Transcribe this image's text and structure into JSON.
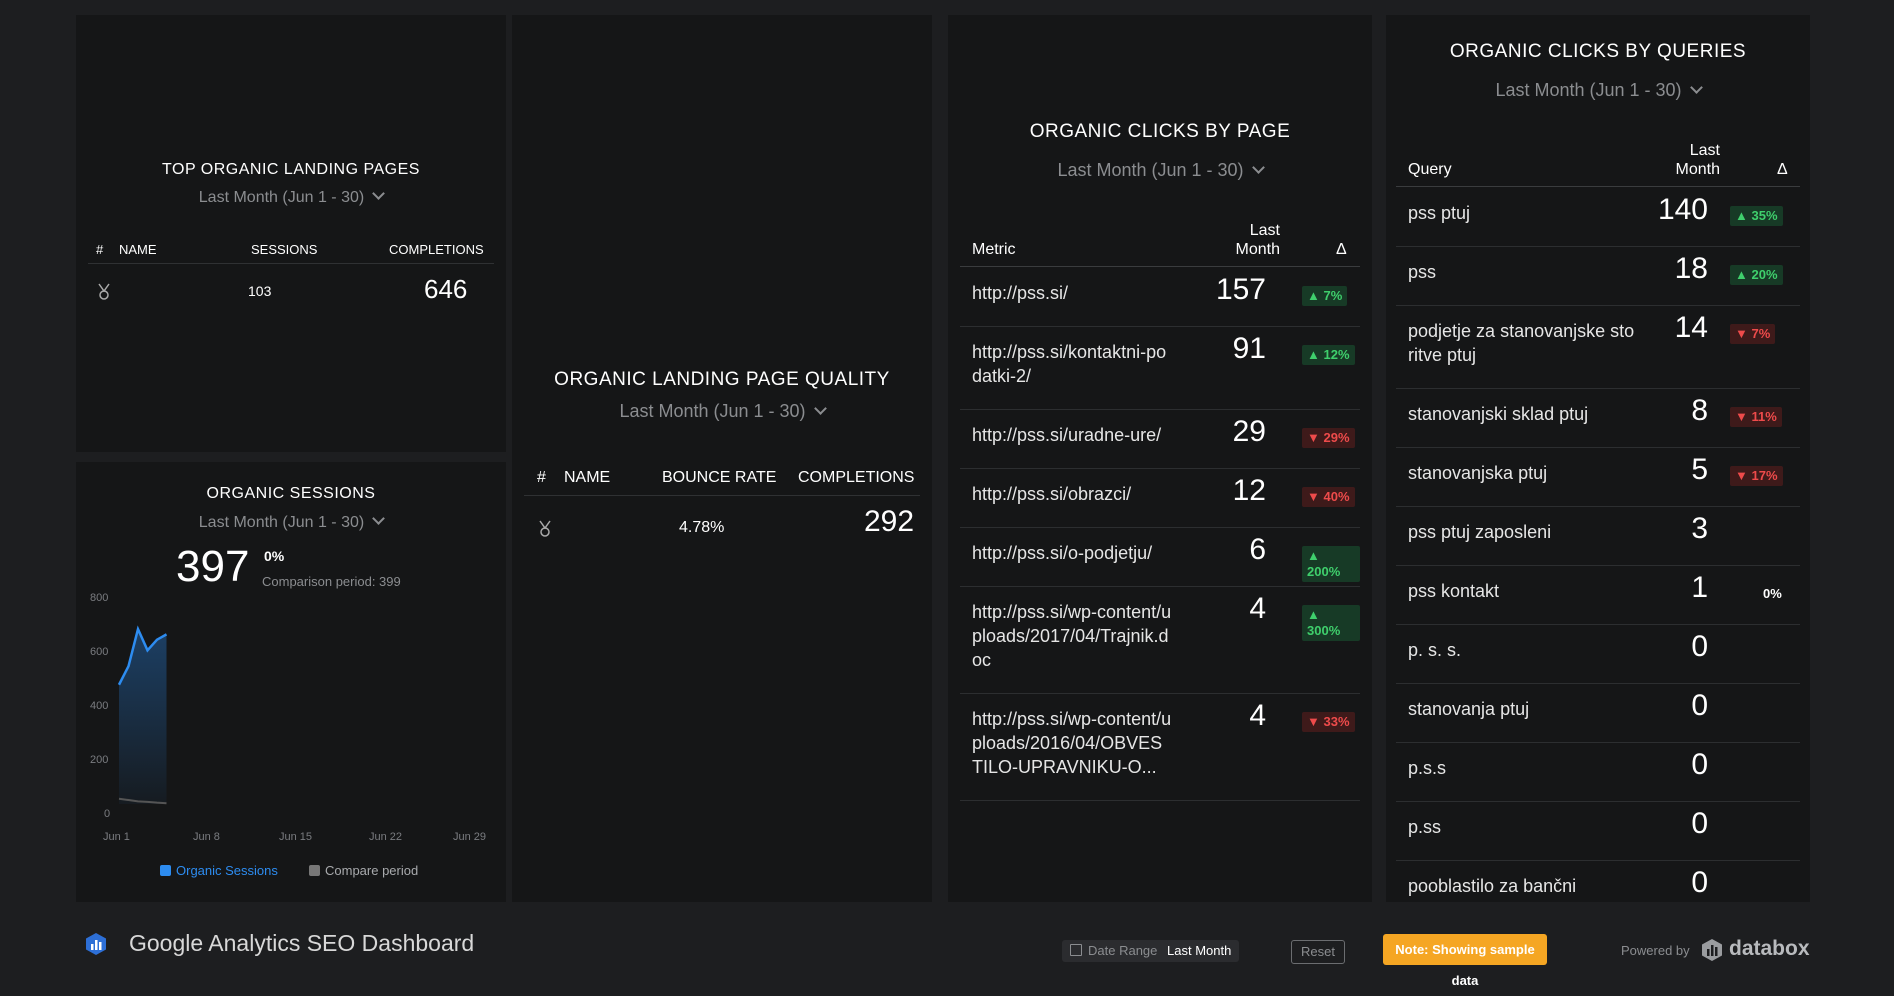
{
  "top_landing": {
    "title": "TOP ORGANIC LANDING PAGES",
    "date": "Last Month (Jun 1 - 30)",
    "headers": [
      "#",
      "NAME",
      "SESSIONS",
      "COMPLETIONS"
    ],
    "row": {
      "sessions": "103",
      "completions": "646"
    }
  },
  "organic_sessions": {
    "title": "ORGANIC SESSIONS",
    "date": "Last Month (Jun 1 - 30)",
    "value": "397",
    "change": "0%",
    "comparison": "Comparison period: 399",
    "legend": [
      "Organic Sessions",
      "Compare period"
    ],
    "colors": {
      "series": "#2d8cf0",
      "compare": "#555"
    }
  },
  "chart_data": {
    "type": "area",
    "x_ticks": [
      "Jun 1",
      "Jun 8",
      "Jun 15",
      "Jun 22",
      "Jun 29"
    ],
    "y_ticks": [
      "800",
      "600",
      "400",
      "200",
      "0"
    ],
    "ylim": [
      0,
      800
    ],
    "series": [
      {
        "name": "Organic Sessions",
        "x": [
          1,
          2,
          3,
          4,
          5,
          6
        ],
        "values": [
          450,
          520,
          660,
          580,
          620,
          640
        ]
      },
      {
        "name": "Compare period",
        "x": [
          1,
          2,
          3,
          4,
          5,
          6
        ],
        "values": [
          20,
          15,
          10,
          8,
          5,
          3
        ]
      }
    ],
    "grid": false,
    "legend": "bottom"
  },
  "landing_quality": {
    "title": "ORGANIC LANDING PAGE QUALITY",
    "date": "Last Month (Jun 1 - 30)",
    "headers": [
      "#",
      "NAME",
      "BOUNCE RATE",
      "COMPLETIONS"
    ],
    "row": {
      "bounce": "4.78%",
      "completions": "292"
    }
  },
  "clicks_by_page": {
    "title": "ORGANIC CLICKS BY PAGE",
    "date": "Last Month (Jun 1 - 30)",
    "headers": {
      "metric": "Metric",
      "last1": "Last",
      "last2": "Month",
      "delta": "Δ"
    },
    "rows": [
      {
        "label": "http://pss.si/",
        "value": "157",
        "change": "▲ 7%",
        "dir": "up"
      },
      {
        "label": "http://pss.si/kontaktni-podatki-2/",
        "value": "91",
        "change": "▲ 12%",
        "dir": "up"
      },
      {
        "label": "http://pss.si/uradne-ure/",
        "value": "29",
        "change": "▼ 29%",
        "dir": "down"
      },
      {
        "label": "http://pss.si/obrazci/",
        "value": "12",
        "change": "▼ 40%",
        "dir": "down"
      },
      {
        "label": "http://pss.si/o-podjetju/",
        "value": "6",
        "change": "▲ 200%",
        "dir": "up"
      },
      {
        "label": "http://pss.si/wp-content/uploads/2017/04/Trajnik.doc",
        "value": "4",
        "change": "▲ 300%",
        "dir": "up"
      },
      {
        "label": "http://pss.si/wp-content/uploads/2016/04/OBVESTILO-UPRAVNIKU-O...",
        "value": "4",
        "change": "▼ 33%",
        "dir": "down"
      }
    ]
  },
  "clicks_by_queries": {
    "title": "ORGANIC CLICKS BY QUERIES",
    "date": "Last Month (Jun 1 - 30)",
    "headers": {
      "query": "Query",
      "last1": "Last",
      "last2": "Month",
      "delta": "Δ"
    },
    "rows": [
      {
        "label": "pss ptuj",
        "value": "140",
        "change": "▲ 35%",
        "dir": "up"
      },
      {
        "label": "pss",
        "value": "18",
        "change": "▲ 20%",
        "dir": "up"
      },
      {
        "label": "podjetje za stanovanjske storitve ptuj",
        "value": "14",
        "change": "▼ 7%",
        "dir": "down"
      },
      {
        "label": "stanovanjski sklad ptuj",
        "value": "8",
        "change": "▼ 11%",
        "dir": "down"
      },
      {
        "label": "stanovanjska ptuj",
        "value": "5",
        "change": "▼ 17%",
        "dir": "down"
      },
      {
        "label": "pss ptuj zaposleni",
        "value": "3",
        "change": "",
        "dir": "none"
      },
      {
        "label": "pss kontakt",
        "value": "1",
        "change": "0%",
        "dir": "neutral"
      },
      {
        "label": "p. s. s.",
        "value": "0",
        "change": "",
        "dir": "none"
      },
      {
        "label": "stanovanja ptuj",
        "value": "0",
        "change": "",
        "dir": "none"
      },
      {
        "label": "p.s.s",
        "value": "0",
        "change": "",
        "dir": "none"
      },
      {
        "label": "p.ss",
        "value": "0",
        "change": "",
        "dir": "none"
      },
      {
        "label": "pooblastilo za bančni",
        "value": "0",
        "change": "",
        "dir": "none"
      }
    ]
  },
  "footer": {
    "title": "Google Analytics SEO Dashboard",
    "date_range_label": "Date Range",
    "date_range_value": "Last Month",
    "reset": "Reset",
    "note": "Note: Showing sample data",
    "powered": "Powered by",
    "brand": "databox"
  }
}
